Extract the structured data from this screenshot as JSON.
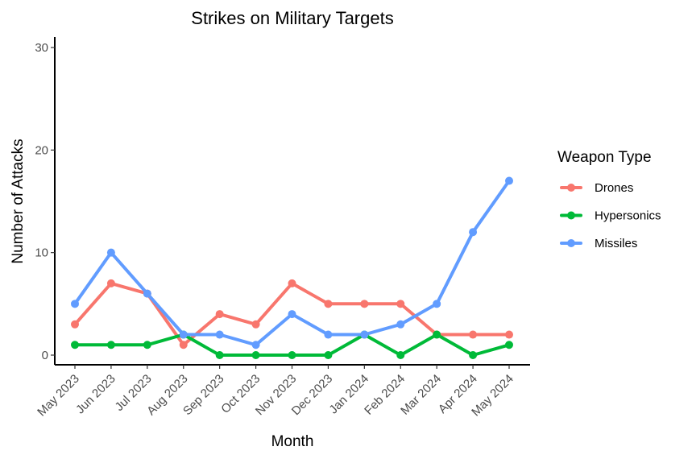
{
  "chart_data": {
    "type": "line",
    "title": "Strikes on Military Targets",
    "xlabel": "Month",
    "ylabel": "Number of Attacks",
    "categories": [
      "May 2023",
      "Jun 2023",
      "Jul 2023",
      "Aug 2023",
      "Sep 2023",
      "Oct 2023",
      "Nov 2023",
      "Dec 2023",
      "Jan 2024",
      "Feb 2024",
      "Mar 2024",
      "Apr 2024",
      "May 2024"
    ],
    "ylim": [
      0,
      30
    ],
    "yticks": [
      0,
      10,
      20,
      30
    ],
    "grid": false,
    "legend": {
      "title": "Weapon Type",
      "placement": "right"
    },
    "series": [
      {
        "name": "Drones",
        "color": "#F8766D",
        "values": [
          3,
          7,
          6,
          1,
          4,
          3,
          7,
          5,
          5,
          5,
          2,
          2,
          2
        ]
      },
      {
        "name": "Hypersonics",
        "color": "#00BA38",
        "values": [
          1,
          1,
          1,
          2,
          0,
          0,
          0,
          0,
          2,
          0,
          2,
          0,
          1
        ]
      },
      {
        "name": "Missiles",
        "color": "#619CFF",
        "values": [
          5,
          10,
          6,
          2,
          2,
          1,
          4,
          2,
          2,
          3,
          5,
          12,
          17
        ]
      }
    ]
  }
}
